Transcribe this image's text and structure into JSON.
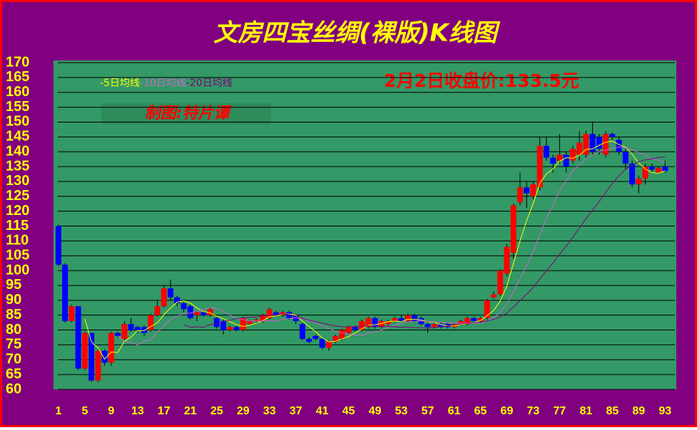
{
  "chart_data": {
    "type": "candlestick",
    "title": "文房四宝丝绸(裸版)K线图",
    "annotations": [
      "2月2日收盘价:133.5元",
      "制图:特片谭"
    ],
    "x": [
      1,
      2,
      3,
      4,
      5,
      6,
      7,
      8,
      9,
      10,
      11,
      12,
      13,
      14,
      15,
      16,
      17,
      18,
      19,
      20,
      21,
      22,
      23,
      24,
      25,
      26,
      27,
      28,
      29,
      30,
      31,
      32,
      33,
      34,
      35,
      36,
      37,
      38,
      39,
      40,
      41,
      42,
      43,
      44,
      45,
      46,
      47,
      48,
      49,
      50,
      51,
      52,
      53,
      54,
      55,
      56,
      57,
      58,
      59,
      60,
      61,
      62,
      63,
      64,
      65,
      66,
      67,
      68,
      69,
      70,
      71,
      72,
      73,
      74,
      75,
      76,
      77,
      78,
      79,
      80,
      81,
      82,
      83,
      84,
      85,
      86,
      87,
      88,
      89,
      90,
      91,
      92,
      93
    ],
    "open": [
      115,
      102,
      83,
      88,
      67,
      79,
      63,
      73,
      69,
      79,
      77,
      82,
      81,
      81,
      80,
      85,
      88,
      94,
      91,
      89,
      88,
      85,
      86,
      85,
      84,
      83,
      80,
      81,
      80,
      82,
      83,
      83,
      84,
      86,
      85,
      86,
      85,
      82,
      77,
      78,
      77,
      74,
      76,
      77,
      79,
      81,
      80,
      81,
      84,
      81,
      82,
      83,
      84,
      83,
      85,
      84,
      82,
      81,
      82,
      82,
      81,
      82,
      82,
      84,
      83,
      84,
      91,
      92,
      99,
      106,
      123,
      128,
      125,
      128,
      142,
      138,
      137,
      139,
      137,
      139,
      139,
      146,
      145,
      139,
      146,
      144,
      140,
      136,
      129,
      131,
      135,
      133,
      135
    ],
    "high": [
      115.5,
      102.5,
      88.5,
      88,
      79.5,
      79,
      73.5,
      73.5,
      79.5,
      79.5,
      83,
      84,
      81.5,
      81.5,
      85.5,
      90,
      95,
      97,
      91.5,
      89.5,
      88.5,
      86.5,
      86.5,
      87.5,
      84.5,
      83.5,
      81.5,
      81.5,
      84.5,
      83.5,
      84,
      85.5,
      87.5,
      86.5,
      86.5,
      86.5,
      85.5,
      82.5,
      77.5,
      78.5,
      77.5,
      76.5,
      78.5,
      80.5,
      81.5,
      81.5,
      83.5,
      84.5,
      84.5,
      83.5,
      83.5,
      84.5,
      85,
      85.5,
      85.5,
      84.5,
      82.5,
      82.5,
      82.5,
      82.5,
      82.5,
      83.5,
      84.5,
      84.5,
      84.5,
      90.5,
      93,
      100.5,
      109,
      122.5,
      133,
      130,
      130,
      145,
      145,
      139,
      146,
      140,
      142,
      147,
      147,
      150,
      146,
      147,
      146.5,
      145,
      141,
      137,
      132,
      136,
      136,
      135,
      137
    ],
    "low": [
      101.5,
      82.5,
      82.5,
      66.5,
      66.5,
      62.5,
      62.5,
      68,
      68,
      77.5,
      76.5,
      79.5,
      79,
      78,
      79.5,
      84.5,
      87.5,
      90,
      88,
      86,
      83.5,
      83,
      84.5,
      84.5,
      80.5,
      78.5,
      79.5,
      79.5,
      79.5,
      81.5,
      82.5,
      82.5,
      83.5,
      84.5,
      84.5,
      83.5,
      82,
      76.5,
      75.5,
      76.5,
      73.5,
      73,
      75.5,
      76.5,
      78.5,
      79.5,
      79.5,
      80.5,
      80.5,
      80.5,
      81.5,
      82.5,
      82.5,
      82.5,
      82.5,
      81.5,
      79,
      80.5,
      80.5,
      80.5,
      80.5,
      81.5,
      81.5,
      82.5,
      82.5,
      83.5,
      90.5,
      91.5,
      98,
      104,
      122,
      121,
      124,
      127,
      137,
      133,
      136,
      133,
      136,
      137,
      138,
      139,
      139,
      138,
      144,
      139,
      134,
      128,
      126,
      129,
      133,
      132.5,
      133
    ],
    "close": [
      102,
      83,
      88,
      67,
      79,
      63,
      73,
      69,
      79,
      78,
      82,
      80,
      80,
      79,
      85,
      88,
      94,
      91,
      89,
      87,
      84,
      86,
      85,
      87,
      81,
      80,
      81,
      80,
      84,
      83,
      83.5,
      85,
      87,
      85,
      86,
      84,
      83,
      77,
      76,
      77,
      74,
      76,
      78,
      80,
      81,
      80,
      83,
      84,
      81,
      83,
      83,
      84,
      83,
      85,
      83,
      82,
      81,
      82,
      81,
      81,
      82,
      83,
      84,
      83,
      84,
      90,
      92,
      100,
      108,
      122,
      128,
      126,
      129,
      142,
      138,
      136,
      139,
      135,
      141,
      143,
      146,
      140,
      141,
      146,
      145,
      140,
      136,
      129,
      131,
      135,
      134,
      134.5,
      133.5
    ],
    "up_color": "#ff0000",
    "down_color": "#0000ff",
    "series": [
      {
        "name": "-5日均线",
        "color": "#ffff00",
        "values": [
          null,
          null,
          null,
          null,
          83.8,
          76,
          74,
          70.2,
          72.6,
          72.4,
          76.2,
          77.6,
          79.8,
          79.8,
          81.2,
          82.4,
          85.2,
          87.4,
          89.4,
          89.8,
          89,
          87.4,
          86.2,
          85.8,
          84.6,
          83.8,
          82.8,
          81.8,
          81.2,
          81.6,
          82.3,
          83.1,
          84.5,
          84.7,
          85.3,
          85.4,
          85,
          83,
          81.2,
          79.4,
          77.4,
          76,
          76.2,
          77,
          77.8,
          79,
          80.4,
          81.6,
          81.8,
          82.2,
          82.8,
          83,
          82.8,
          83.6,
          83.6,
          83.4,
          82.8,
          82.6,
          81.8,
          81.4,
          81.4,
          81.8,
          82.2,
          82.6,
          83.2,
          84.8,
          86.6,
          89.8,
          94.8,
          102.4,
          110,
          116.8,
          122.6,
          129.4,
          132.6,
          134.2,
          136.8,
          138,
          137.8,
          138.8,
          140.8,
          141,
          142.2,
          143.2,
          143.6,
          142.4,
          141.6,
          139.2,
          136.2,
          134.2,
          133,
          132.7,
          133.6
        ]
      },
      {
        "name": "-10日均线",
        "color": "#cc66cc",
        "values": [
          null,
          null,
          null,
          null,
          null,
          null,
          null,
          null,
          null,
          78.1,
          76.1,
          75.8,
          75,
          76.2,
          76.8,
          79.3,
          81.4,
          83.6,
          84.6,
          85.5,
          85.7,
          86.3,
          86.8,
          87.6,
          87.2,
          86.4,
          85.1,
          84,
          83.5,
          83.1,
          83.1,
          83,
          83.2,
          83,
          83.5,
          83.9,
          84.1,
          83.8,
          83,
          82.4,
          81.4,
          80.5,
          79.6,
          79.1,
          78.6,
          78.2,
          78.2,
          78.9,
          79.4,
          80,
          80.9,
          81.7,
          82.2,
          82.7,
          82.9,
          83.1,
          82.9,
          82.7,
          82.7,
          82.5,
          82.4,
          82.3,
          82.4,
          82.2,
          82.3,
          83.1,
          84.2,
          86,
          88.7,
          92.8,
          97.4,
          101.7,
          106.2,
          112.1,
          117.5,
          122.1,
          126.8,
          130.3,
          133.6,
          135.7,
          137.5,
          138.9,
          140.1,
          140.5,
          141.2,
          141.6,
          141.3,
          140.7,
          139.7,
          138.9,
          137.7,
          137.2,
          136.4
        ]
      },
      {
        "name": "-20日均线",
        "color": "#800080",
        "values": [
          null,
          null,
          null,
          null,
          null,
          null,
          null,
          null,
          null,
          null,
          null,
          null,
          null,
          null,
          null,
          null,
          null,
          null,
          null,
          81.8,
          80.9,
          81.1,
          80.9,
          81.9,
          82,
          82.9,
          83.3,
          83.8,
          84.1,
          84.3,
          84.4,
          84.7,
          85,
          85.3,
          85.4,
          85.2,
          84.6,
          83.9,
          83.3,
          82.8,
          82.3,
          81.8,
          81.4,
          81.1,
          81.1,
          81.1,
          81.2,
          81.4,
          81.2,
          81.2,
          81.2,
          81.1,
          80.9,
          80.9,
          80.8,
          80.7,
          80.6,
          80.8,
          81.1,
          81.3,
          81.7,
          82,
          82.3,
          82.5,
          82.6,
          83.1,
          83.6,
          84.4,
          85.7,
          87.7,
          89.9,
          92,
          94.3,
          97.2,
          99.9,
          102.6,
          105.5,
          108.2,
          111.2,
          114.3,
          117.5,
          120.3,
          123.2,
          126.3,
          129.4,
          131.9,
          134.1,
          135.5,
          136.7,
          137.3,
          137.6,
          138.1,
          138.3
        ]
      }
    ],
    "xlim": [
      0.25,
      94.7
    ],
    "xticks": [
      1,
      5,
      9,
      13,
      17,
      21,
      25,
      29,
      33,
      37,
      41,
      45,
      49,
      53,
      57,
      61,
      65,
      69,
      73,
      77,
      81,
      85,
      89,
      93
    ],
    "ylim": [
      60,
      170
    ],
    "yticks": [
      60,
      65,
      70,
      75,
      80,
      85,
      90,
      95,
      100,
      105,
      110,
      115,
      120,
      125,
      130,
      135,
      140,
      145,
      150,
      155,
      160,
      165,
      170
    ],
    "grid": true
  }
}
